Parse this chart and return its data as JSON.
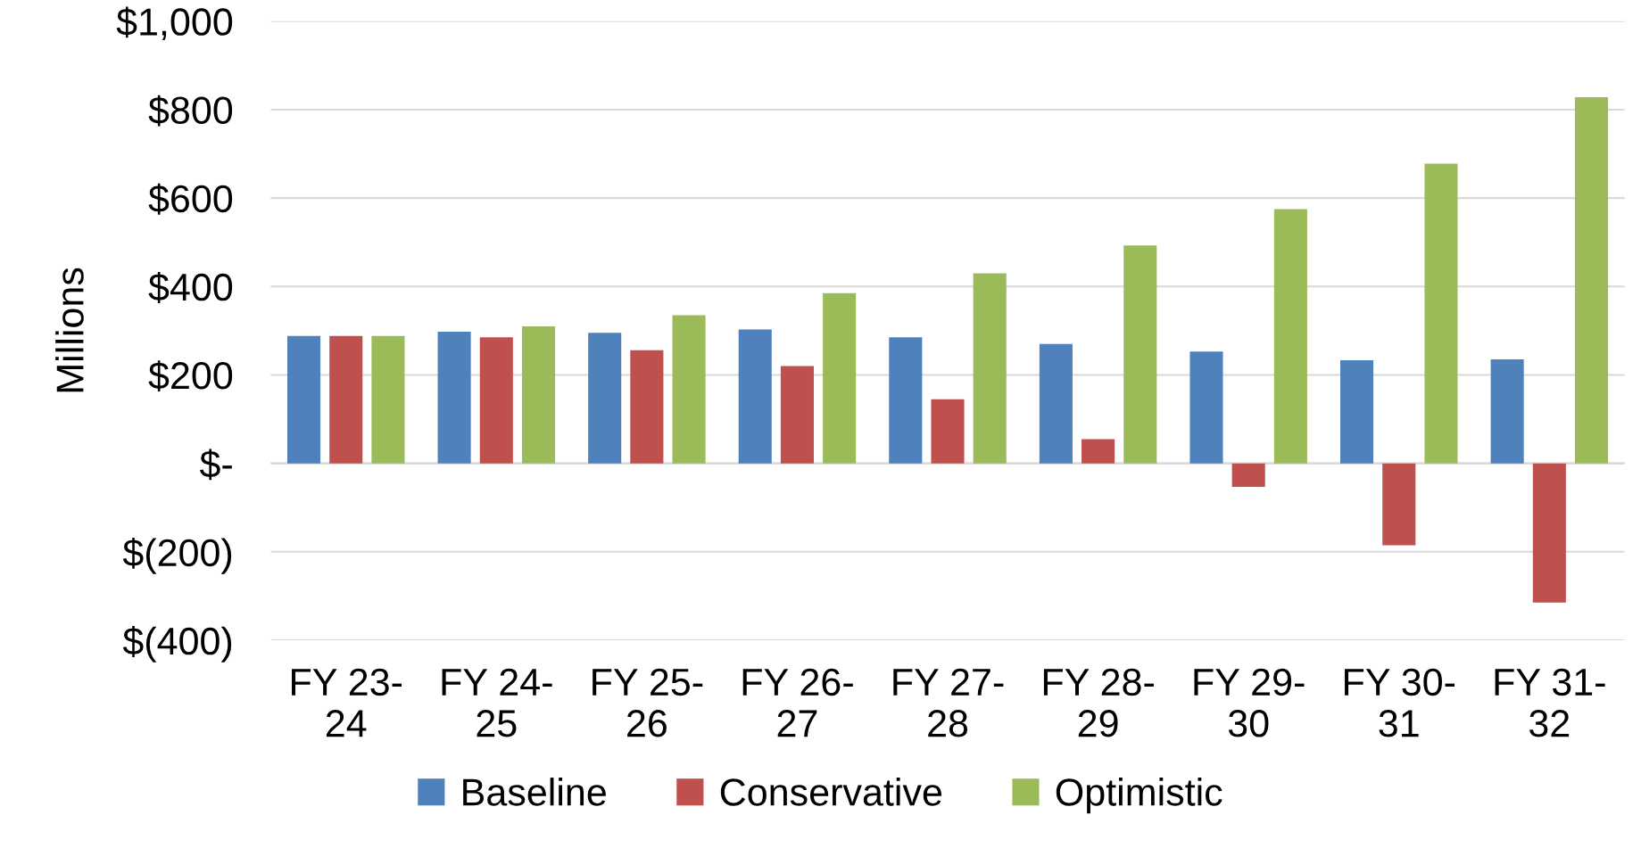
{
  "chart_data": {
    "type": "bar",
    "ylabel": "Millions",
    "categories": [
      "FY 23-\n24",
      "FY 24-\n25",
      "FY 25-\n26",
      "FY 26-\n27",
      "FY 27-\n28",
      "FY 28-\n29",
      "FY 29-\n30",
      "FY 30-\n31",
      "FY 31-\n32"
    ],
    "series": [
      {
        "name": "Baseline",
        "color": "#4f81bd",
        "values": [
          288,
          298,
          295,
          303,
          285,
          270,
          253,
          233,
          235
        ]
      },
      {
        "name": "Conservative",
        "color": "#c0504d",
        "values": [
          288,
          285,
          256,
          220,
          145,
          55,
          -53,
          -185,
          -315
        ]
      },
      {
        "name": "Optimistic",
        "color": "#9bbb59",
        "values": [
          288,
          310,
          335,
          385,
          430,
          493,
          575,
          678,
          828
        ]
      }
    ],
    "ylim": [
      -400,
      1000
    ],
    "yticks": [
      {
        "value": -400,
        "label": "$(400)"
      },
      {
        "value": -200,
        "label": "$(200)"
      },
      {
        "value": 0,
        "label": "$-"
      },
      {
        "value": 200,
        "label": "$200"
      },
      {
        "value": 400,
        "label": "$400"
      },
      {
        "value": 600,
        "label": "$600"
      },
      {
        "value": 800,
        "label": "$800"
      },
      {
        "value": 1000,
        "label": "$1,000"
      }
    ],
    "grid": "y",
    "legend": "bottom"
  }
}
